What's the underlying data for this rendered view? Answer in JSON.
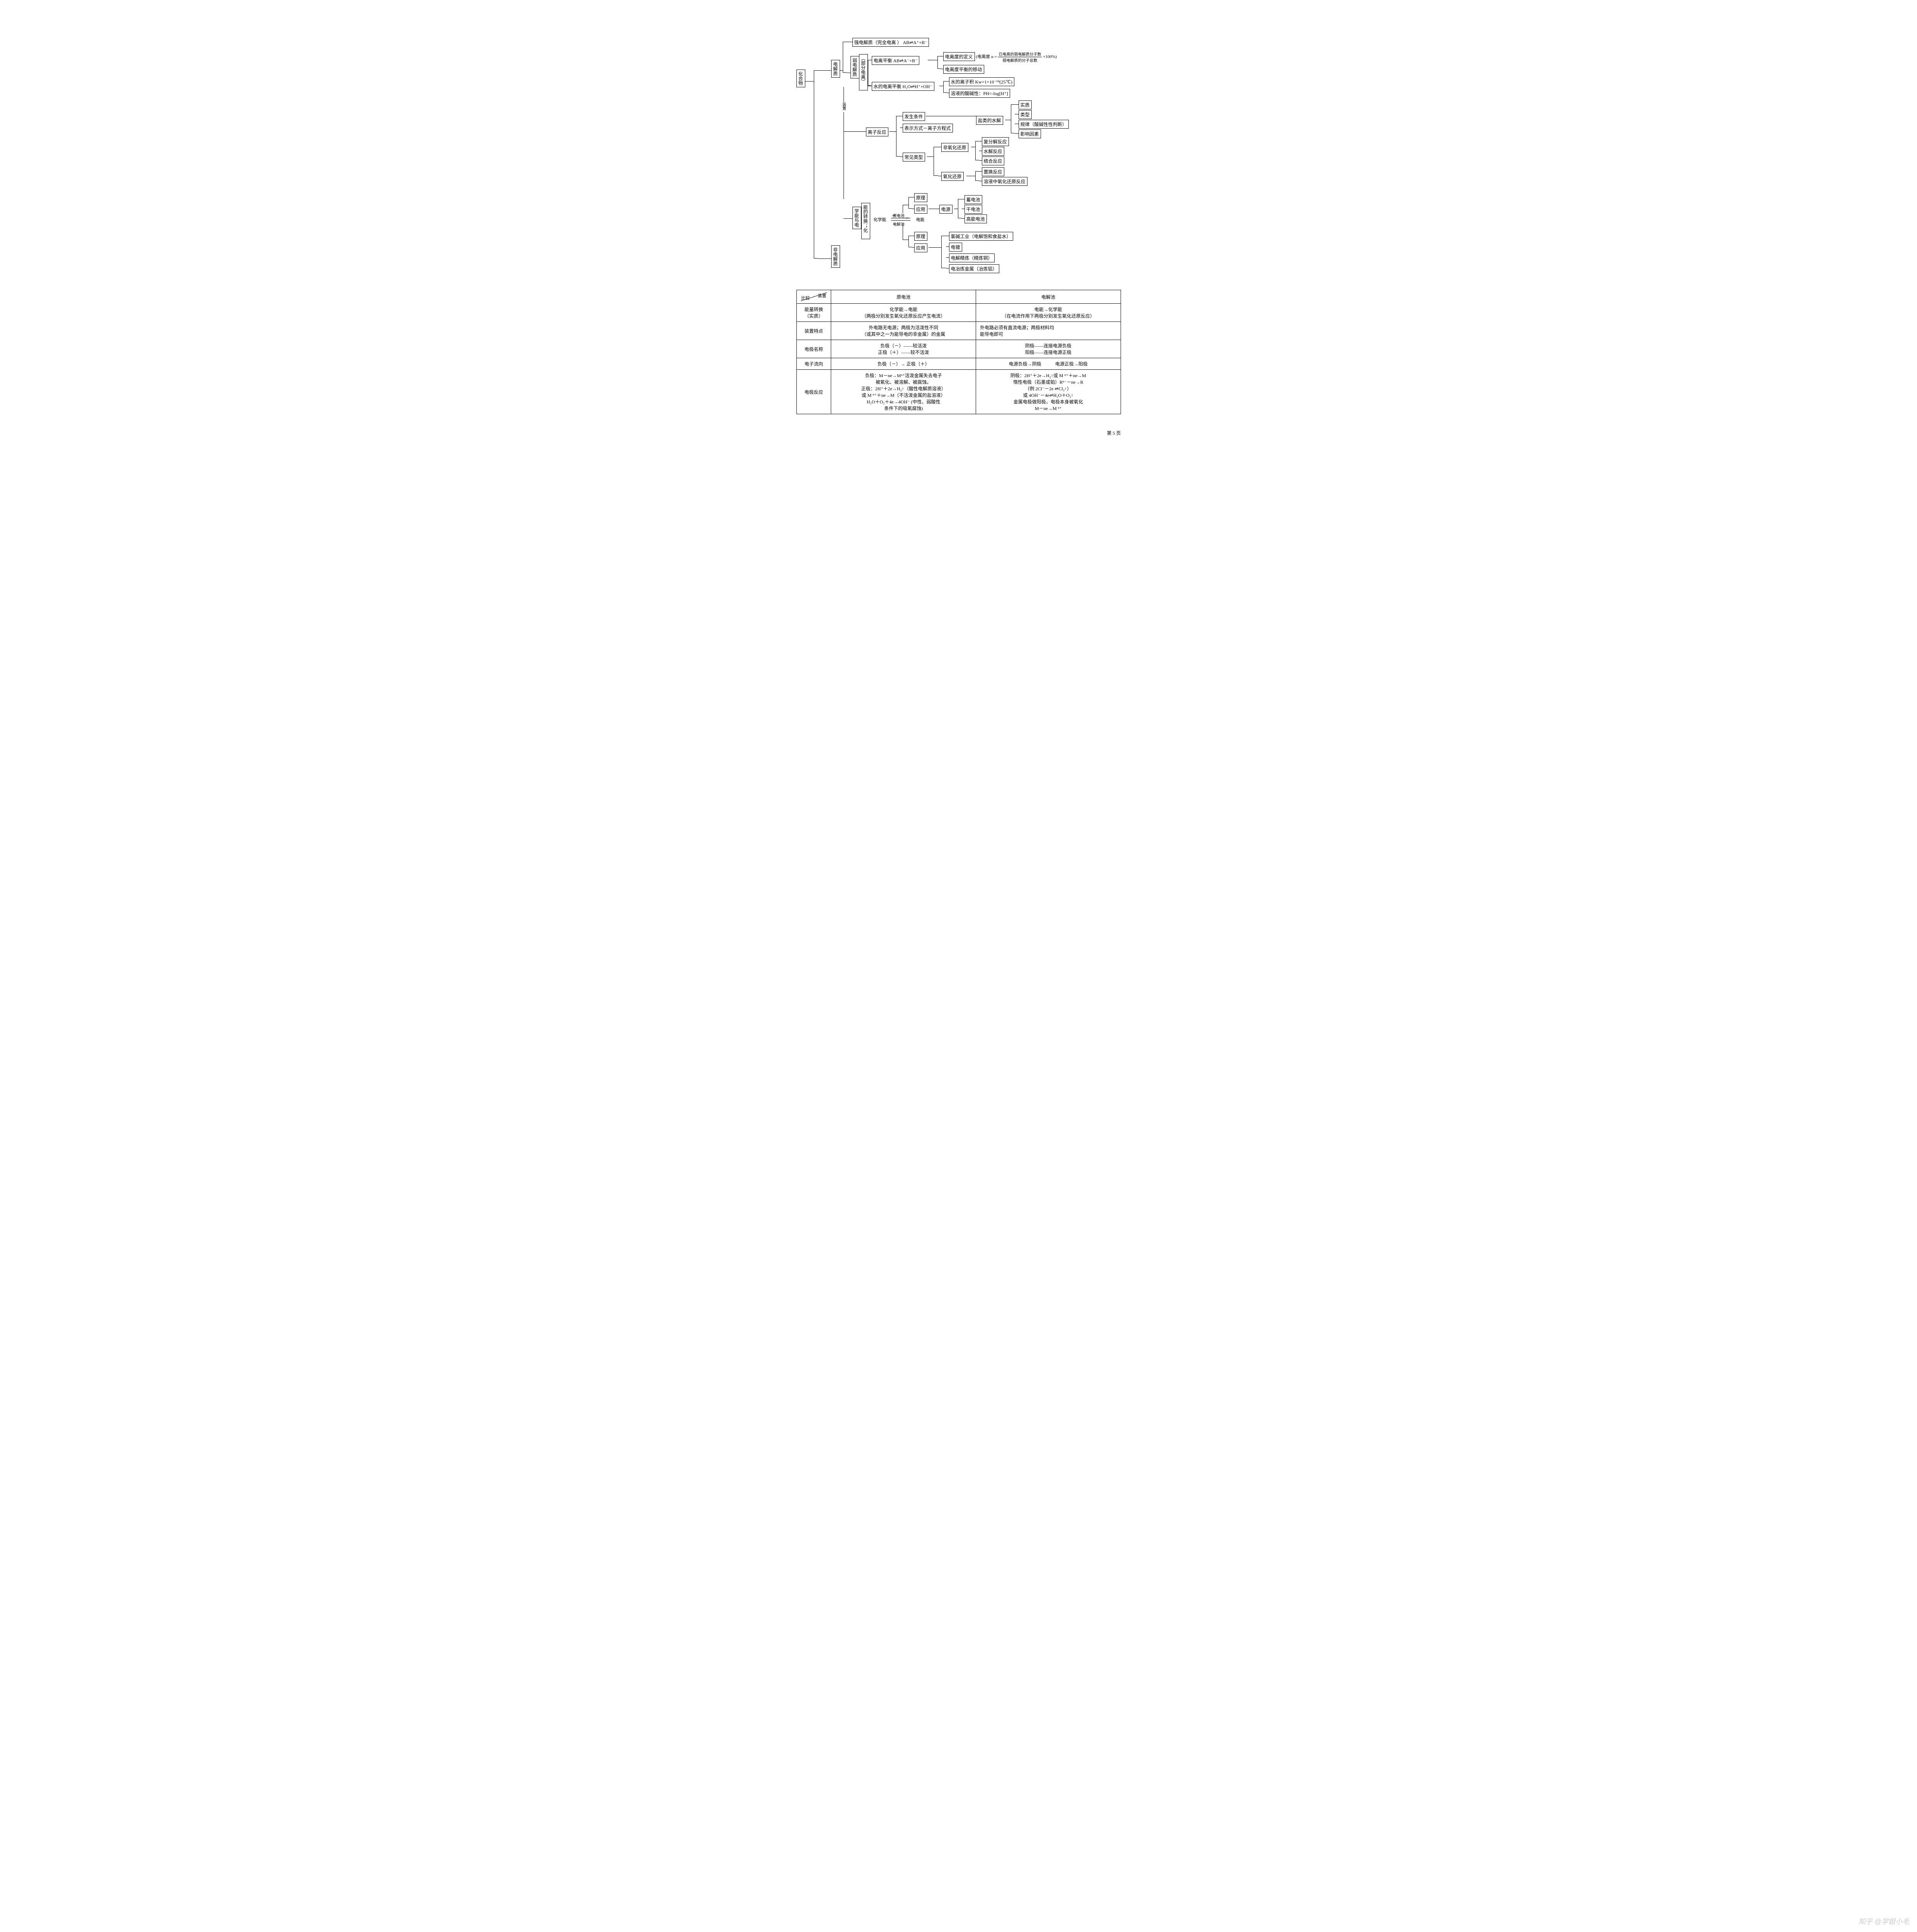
{
  "colors": {
    "line": "#000000",
    "bg": "#ffffff",
    "text": "#000000",
    "watermark": "#cccccc"
  },
  "tree": {
    "root": "化合物",
    "l1a": "电解质",
    "l1b": "非电解质",
    "weak": "弱电解质",
    "weakp": "（部分电离）",
    "zhuangzhi": "装置",
    "box_strong": "强电解质（完全电离 ） AB⇌A⁺+B⁻",
    "box_ion_eq": "电离平衡 AB⇌A⁻+B⁻",
    "box_water_eq": "水的电离平衡 H₂O⇌H⁺+OH⁻",
    "box_deg_def": "电离度的定义",
    "deg_formula_pre": "(电离度 α = ",
    "deg_num": "已电离的弱电解质分子数",
    "deg_den": "弱电解质的分子总数",
    "deg_post": "×100%)",
    "box_deg_shift": "电离度平衡的移动",
    "box_kw": "水的离子积 Kw=1×10⁻¹⁴(25℃)",
    "box_ph": "溶液的酸碱性：PH=-log[H⁺]",
    "box_ion_rxn": "离子反应",
    "box_cond": "发生条件",
    "box_repr": "表示方式－离子方程式",
    "box_common": "常见类型",
    "box_salt_hyd": "盐类的水解",
    "hyd_a": "实质",
    "hyd_b": "类型",
    "hyd_c": "规律（酸碱性性判断）",
    "hyd_d": "影响因素",
    "box_nonredox": "非氧化还原",
    "nonr_a": "复分解反应",
    "nonr_b": "水解反应",
    "nonr_c": "络合反应",
    "box_redox": "氧化还原",
    "red_a": "置换反应",
    "red_b": "溶液中氧化还原反应",
    "l1c": "学能与电",
    "l1c_sub": "能的转换；化",
    "chem_e": "化学能",
    "arrow_top": "原电池",
    "arrow_bot": "电解池",
    "elec_e": "电能",
    "prin1": "原理",
    "app1": "应用",
    "src": "电源",
    "src_a": "蓄电池",
    "src_b": "干电池",
    "src_c": "高能电池",
    "prin2": "原理",
    "app2": "应用",
    "elys_a": "氯碱工业（电解饱和食盐水）",
    "elys_b": "电镀",
    "elys_c": "电解精炼（精炼铜）",
    "elys_d": "电冶炼金属（冶炼铝）"
  },
  "table": {
    "h_cmp": "比较",
    "h_dev": "装置",
    "h_gal": "原电池",
    "h_ely": "电解池",
    "r1": "能量转换\n（实质）",
    "r1a": "化学能→电能\n（两极分别发生氧化还原反应产生电流）",
    "r1b": "电能→化学能\n（在电流作用下两极分别发生氧化还原反应）",
    "r2": "装置特点",
    "r2a": "外电路无电源；两极为活泼性不同\n（或其中之一为能导电的非金属）的金属",
    "r2b": "外电路必须有直流电源；两极材料均\n能导电即可",
    "r3": "电极名称",
    "r3a": "负极（－）——较活泼\n正极（＋）——较不活泼",
    "r3b": "阴极——连接电源负极\n阳极——连接电源正极",
    "r4": "电子流向",
    "r4a": "负极（－）→ 正极（＋）",
    "r4b": "电源负极→阴极　　　电源正极→阳极",
    "r5": "电极反应",
    "r5a": "负极：M－ne→Mⁿ⁺活泼金属失去电子\n被氧化、被溶解、被腐蚀。\n正极：2H⁺＋2e→H₂↑（酸性电解质溶液）\n或 M ⁿ⁺＋ne→M（不活泼金属的盐溶液）\nH₂O＋O₂＋4e→4OH⁻ (中性、弱酸性\n条件下的吸氧腐蚀)",
    "r5b": "阴极：2H⁺＋2e→H₂↑或 M ⁿ⁺＋ne→M\n惰性电极（石墨或铂）Rⁿ⁻－ne→R\n（例 2Cl⁻－2e ⇌Cl₂↑）\n或 4OH⁻－4e⇌H₂O＋O₂↑\n金属电极做阳极，电极本身被氧化\nM－ne→M ⁿ⁺"
  },
  "pagenum": "第 5 页",
  "watermark": "知乎 @学姐小毛"
}
